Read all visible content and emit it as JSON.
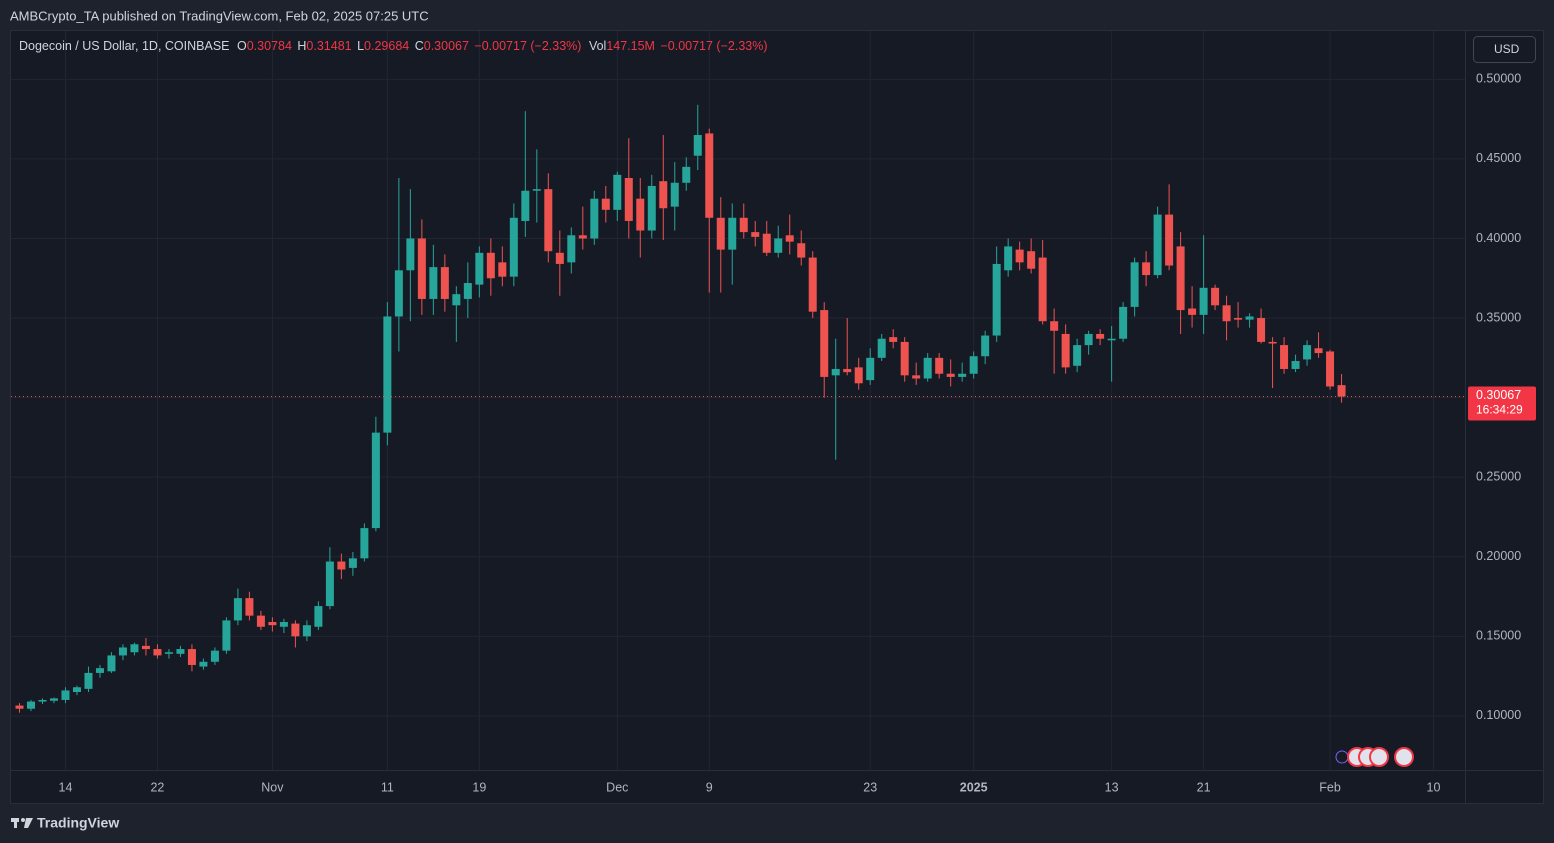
{
  "header": {
    "published": "AMBCrypto_TA published on TradingView.com, Feb 02, 2025 07:25 UTC"
  },
  "footer": {
    "brand": "TradingView"
  },
  "chart_data": {
    "type": "candlestick",
    "legend": {
      "symbol": "Dogecoin / US Dollar, 1D, COINBASE",
      "open_label": "O",
      "open": "0.30784",
      "high_label": "H",
      "high": "0.31481",
      "low_label": "L",
      "low": "0.29684",
      "close_label": "C",
      "close": "0.30067",
      "change": "−0.00717 (−2.33%)",
      "volume_label": "Vol",
      "volume": "147.15M",
      "volume_change": "−0.00717 (−2.33%)"
    },
    "currency": "USD",
    "last_price": 0.30067,
    "countdown": "16:34:29",
    "up_color": "#26a69a",
    "down_color": "#ef5350",
    "grid": true,
    "xlim": [
      "2024-10-09",
      "2025-02-13"
    ],
    "xticks": [
      {
        "value": "2024-10-14",
        "label": "14"
      },
      {
        "value": "2024-10-22",
        "label": "22"
      },
      {
        "value": "2024-11-01",
        "label": "Nov"
      },
      {
        "value": "2024-11-11",
        "label": "11"
      },
      {
        "value": "2024-11-19",
        "label": "19"
      },
      {
        "value": "2024-12-01",
        "label": "Dec"
      },
      {
        "value": "2024-12-09",
        "label": "9"
      },
      {
        "value": "2024-12-23",
        "label": "23"
      },
      {
        "value": "2025-01-01",
        "label": "2025"
      },
      {
        "value": "2025-01-13",
        "label": "13"
      },
      {
        "value": "2025-01-21",
        "label": "21"
      },
      {
        "value": "2025-02-01",
        "label": "Feb"
      },
      {
        "value": "2025-02-10",
        "label": "10"
      }
    ],
    "ylim": [
      0.066,
      0.531
    ],
    "yticks": [
      {
        "value": 0.1,
        "label": "0.10000"
      },
      {
        "value": 0.15,
        "label": "0.15000"
      },
      {
        "value": 0.2,
        "label": "0.20000"
      },
      {
        "value": 0.25,
        "label": "0.25000"
      },
      {
        "value": 0.3,
        "label": "0.30000"
      },
      {
        "value": 0.35,
        "label": "0.35000"
      },
      {
        "value": 0.4,
        "label": "0.40000"
      },
      {
        "value": 0.45,
        "label": "0.45000"
      },
      {
        "value": 0.5,
        "label": "0.50000"
      }
    ],
    "candles": [
      {
        "x": "2024-10-10",
        "open": 0.1065,
        "high": 0.108,
        "low": 0.102,
        "close": 0.1045
      },
      {
        "x": "2024-10-11",
        "open": 0.1045,
        "high": 0.11,
        "low": 0.103,
        "close": 0.109
      },
      {
        "x": "2024-10-12",
        "open": 0.109,
        "high": 0.111,
        "low": 0.1075,
        "close": 0.11
      },
      {
        "x": "2024-10-13",
        "open": 0.1095,
        "high": 0.1115,
        "low": 0.108,
        "close": 0.111
      },
      {
        "x": "2024-10-14",
        "open": 0.11,
        "high": 0.118,
        "low": 0.108,
        "close": 0.116
      },
      {
        "x": "2024-10-15",
        "open": 0.115,
        "high": 0.119,
        "low": 0.113,
        "close": 0.118
      },
      {
        "x": "2024-10-16",
        "open": 0.117,
        "high": 0.131,
        "low": 0.115,
        "close": 0.127
      },
      {
        "x": "2024-10-17",
        "open": 0.127,
        "high": 0.132,
        "low": 0.124,
        "close": 0.13
      },
      {
        "x": "2024-10-18",
        "open": 0.128,
        "high": 0.14,
        "low": 0.127,
        "close": 0.138
      },
      {
        "x": "2024-10-19",
        "open": 0.138,
        "high": 0.145,
        "low": 0.135,
        "close": 0.143
      },
      {
        "x": "2024-10-20",
        "open": 0.14,
        "high": 0.146,
        "low": 0.138,
        "close": 0.145
      },
      {
        "x": "2024-10-21",
        "open": 0.144,
        "high": 0.149,
        "low": 0.138,
        "close": 0.142
      },
      {
        "x": "2024-10-22",
        "open": 0.142,
        "high": 0.145,
        "low": 0.136,
        "close": 0.138
      },
      {
        "x": "2024-10-23",
        "open": 0.139,
        "high": 0.142,
        "low": 0.136,
        "close": 0.14
      },
      {
        "x": "2024-10-24",
        "open": 0.139,
        "high": 0.144,
        "low": 0.137,
        "close": 0.142
      },
      {
        "x": "2024-10-25",
        "open": 0.142,
        "high": 0.145,
        "low": 0.128,
        "close": 0.132
      },
      {
        "x": "2024-10-26",
        "open": 0.131,
        "high": 0.136,
        "low": 0.129,
        "close": 0.134
      },
      {
        "x": "2024-10-27",
        "open": 0.134,
        "high": 0.143,
        "low": 0.132,
        "close": 0.141
      },
      {
        "x": "2024-10-28",
        "open": 0.141,
        "high": 0.162,
        "low": 0.139,
        "close": 0.16
      },
      {
        "x": "2024-10-29",
        "open": 0.16,
        "high": 0.18,
        "low": 0.157,
        "close": 0.174
      },
      {
        "x": "2024-10-30",
        "open": 0.174,
        "high": 0.178,
        "low": 0.16,
        "close": 0.163
      },
      {
        "x": "2024-10-31",
        "open": 0.163,
        "high": 0.166,
        "low": 0.154,
        "close": 0.156
      },
      {
        "x": "2024-11-01",
        "open": 0.159,
        "high": 0.162,
        "low": 0.153,
        "close": 0.157
      },
      {
        "x": "2024-11-02",
        "open": 0.156,
        "high": 0.161,
        "low": 0.152,
        "close": 0.159
      },
      {
        "x": "2024-11-03",
        "open": 0.158,
        "high": 0.16,
        "low": 0.143,
        "close": 0.15
      },
      {
        "x": "2024-11-04",
        "open": 0.15,
        "high": 0.16,
        "low": 0.147,
        "close": 0.157
      },
      {
        "x": "2024-11-05",
        "open": 0.156,
        "high": 0.172,
        "low": 0.154,
        "close": 0.169
      },
      {
        "x": "2024-11-06",
        "open": 0.169,
        "high": 0.206,
        "low": 0.167,
        "close": 0.197
      },
      {
        "x": "2024-11-07",
        "open": 0.197,
        "high": 0.202,
        "low": 0.186,
        "close": 0.192
      },
      {
        "x": "2024-11-08",
        "open": 0.193,
        "high": 0.203,
        "low": 0.188,
        "close": 0.199
      },
      {
        "x": "2024-11-09",
        "open": 0.199,
        "high": 0.221,
        "low": 0.197,
        "close": 0.218
      },
      {
        "x": "2024-11-10",
        "open": 0.218,
        "high": 0.288,
        "low": 0.216,
        "close": 0.278
      },
      {
        "x": "2024-11-11",
        "open": 0.278,
        "high": 0.36,
        "low": 0.27,
        "close": 0.351
      },
      {
        "x": "2024-11-12",
        "open": 0.351,
        "high": 0.438,
        "low": 0.329,
        "close": 0.38
      },
      {
        "x": "2024-11-13",
        "open": 0.38,
        "high": 0.431,
        "low": 0.348,
        "close": 0.4
      },
      {
        "x": "2024-11-14",
        "open": 0.4,
        "high": 0.412,
        "low": 0.352,
        "close": 0.362
      },
      {
        "x": "2024-11-15",
        "open": 0.362,
        "high": 0.396,
        "low": 0.352,
        "close": 0.382
      },
      {
        "x": "2024-11-16",
        "open": 0.382,
        "high": 0.39,
        "low": 0.354,
        "close": 0.362
      },
      {
        "x": "2024-11-17",
        "open": 0.358,
        "high": 0.37,
        "low": 0.335,
        "close": 0.365
      },
      {
        "x": "2024-11-18",
        "open": 0.362,
        "high": 0.385,
        "low": 0.35,
        "close": 0.372
      },
      {
        "x": "2024-11-19",
        "open": 0.371,
        "high": 0.395,
        "low": 0.363,
        "close": 0.391
      },
      {
        "x": "2024-11-20",
        "open": 0.391,
        "high": 0.4,
        "low": 0.364,
        "close": 0.375
      },
      {
        "x": "2024-11-21",
        "open": 0.385,
        "high": 0.395,
        "low": 0.37,
        "close": 0.376
      },
      {
        "x": "2024-11-22",
        "open": 0.376,
        "high": 0.422,
        "low": 0.37,
        "close": 0.413
      },
      {
        "x": "2024-11-23",
        "open": 0.411,
        "high": 0.48,
        "low": 0.401,
        "close": 0.43
      },
      {
        "x": "2024-11-24",
        "open": 0.43,
        "high": 0.456,
        "low": 0.41,
        "close": 0.431
      },
      {
        "x": "2024-11-25",
        "open": 0.431,
        "high": 0.441,
        "low": 0.385,
        "close": 0.392
      },
      {
        "x": "2024-11-26",
        "open": 0.391,
        "high": 0.405,
        "low": 0.364,
        "close": 0.384
      },
      {
        "x": "2024-11-27",
        "open": 0.385,
        "high": 0.407,
        "low": 0.378,
        "close": 0.402
      },
      {
        "x": "2024-11-28",
        "open": 0.402,
        "high": 0.42,
        "low": 0.393,
        "close": 0.4
      },
      {
        "x": "2024-11-29",
        "open": 0.4,
        "high": 0.43,
        "low": 0.396,
        "close": 0.425
      },
      {
        "x": "2024-11-30",
        "open": 0.425,
        "high": 0.433,
        "low": 0.41,
        "close": 0.418
      },
      {
        "x": "2024-12-01",
        "open": 0.418,
        "high": 0.442,
        "low": 0.411,
        "close": 0.44
      },
      {
        "x": "2024-12-02",
        "open": 0.438,
        "high": 0.463,
        "low": 0.4,
        "close": 0.411
      },
      {
        "x": "2024-12-03",
        "open": 0.425,
        "high": 0.438,
        "low": 0.388,
        "close": 0.405
      },
      {
        "x": "2024-12-04",
        "open": 0.405,
        "high": 0.44,
        "low": 0.4,
        "close": 0.433
      },
      {
        "x": "2024-12-05",
        "open": 0.436,
        "high": 0.465,
        "low": 0.399,
        "close": 0.419
      },
      {
        "x": "2024-12-06",
        "open": 0.42,
        "high": 0.448,
        "low": 0.405,
        "close": 0.435
      },
      {
        "x": "2024-12-07",
        "open": 0.435,
        "high": 0.451,
        "low": 0.43,
        "close": 0.445
      },
      {
        "x": "2024-12-08",
        "open": 0.452,
        "high": 0.484,
        "low": 0.443,
        "close": 0.465
      },
      {
        "x": "2024-12-09",
        "open": 0.466,
        "high": 0.469,
        "low": 0.366,
        "close": 0.413
      },
      {
        "x": "2024-12-10",
        "open": 0.413,
        "high": 0.426,
        "low": 0.366,
        "close": 0.393
      },
      {
        "x": "2024-12-11",
        "open": 0.393,
        "high": 0.422,
        "low": 0.371,
        "close": 0.413
      },
      {
        "x": "2024-12-12",
        "open": 0.413,
        "high": 0.422,
        "low": 0.4,
        "close": 0.404
      },
      {
        "x": "2024-12-13",
        "open": 0.404,
        "high": 0.411,
        "low": 0.395,
        "close": 0.401
      },
      {
        "x": "2024-12-14",
        "open": 0.403,
        "high": 0.411,
        "low": 0.389,
        "close": 0.391
      },
      {
        "x": "2024-12-15",
        "open": 0.391,
        "high": 0.408,
        "low": 0.388,
        "close": 0.4
      },
      {
        "x": "2024-12-16",
        "open": 0.402,
        "high": 0.415,
        "low": 0.39,
        "close": 0.398
      },
      {
        "x": "2024-12-17",
        "open": 0.397,
        "high": 0.405,
        "low": 0.383,
        "close": 0.388
      },
      {
        "x": "2024-12-18",
        "open": 0.388,
        "high": 0.392,
        "low": 0.35,
        "close": 0.354
      },
      {
        "x": "2024-12-19",
        "open": 0.355,
        "high": 0.36,
        "low": 0.3,
        "close": 0.313
      },
      {
        "x": "2024-12-20",
        "open": 0.314,
        "high": 0.337,
        "low": 0.261,
        "close": 0.318
      },
      {
        "x": "2024-12-21",
        "open": 0.318,
        "high": 0.35,
        "low": 0.314,
        "close": 0.316
      },
      {
        "x": "2024-12-22",
        "open": 0.319,
        "high": 0.325,
        "low": 0.305,
        "close": 0.309
      },
      {
        "x": "2024-12-23",
        "open": 0.311,
        "high": 0.331,
        "low": 0.308,
        "close": 0.325
      },
      {
        "x": "2024-12-24",
        "open": 0.325,
        "high": 0.34,
        "low": 0.323,
        "close": 0.337
      },
      {
        "x": "2024-12-25",
        "open": 0.338,
        "high": 0.343,
        "low": 0.331,
        "close": 0.335
      },
      {
        "x": "2024-12-26",
        "open": 0.335,
        "high": 0.338,
        "low": 0.31,
        "close": 0.314
      },
      {
        "x": "2024-12-27",
        "open": 0.314,
        "high": 0.322,
        "low": 0.308,
        "close": 0.312
      },
      {
        "x": "2024-12-28",
        "open": 0.312,
        "high": 0.328,
        "low": 0.31,
        "close": 0.325
      },
      {
        "x": "2024-12-29",
        "open": 0.325,
        "high": 0.328,
        "low": 0.312,
        "close": 0.315
      },
      {
        "x": "2024-12-30",
        "open": 0.315,
        "high": 0.324,
        "low": 0.307,
        "close": 0.313
      },
      {
        "x": "2024-12-31",
        "open": 0.313,
        "high": 0.322,
        "low": 0.31,
        "close": 0.315
      },
      {
        "x": "2025-01-01",
        "open": 0.315,
        "high": 0.329,
        "low": 0.312,
        "close": 0.326
      },
      {
        "x": "2025-01-02",
        "open": 0.326,
        "high": 0.342,
        "low": 0.321,
        "close": 0.339
      },
      {
        "x": "2025-01-03",
        "open": 0.339,
        "high": 0.395,
        "low": 0.335,
        "close": 0.384
      },
      {
        "x": "2025-01-04",
        "open": 0.38,
        "high": 0.4,
        "low": 0.376,
        "close": 0.395
      },
      {
        "x": "2025-01-05",
        "open": 0.393,
        "high": 0.398,
        "low": 0.38,
        "close": 0.385
      },
      {
        "x": "2025-01-06",
        "open": 0.392,
        "high": 0.4,
        "low": 0.378,
        "close": 0.381
      },
      {
        "x": "2025-01-07",
        "open": 0.388,
        "high": 0.399,
        "low": 0.346,
        "close": 0.348
      },
      {
        "x": "2025-01-08",
        "open": 0.348,
        "high": 0.356,
        "low": 0.315,
        "close": 0.342
      },
      {
        "x": "2025-01-09",
        "open": 0.34,
        "high": 0.346,
        "low": 0.315,
        "close": 0.319
      },
      {
        "x": "2025-01-10",
        "open": 0.32,
        "high": 0.337,
        "low": 0.316,
        "close": 0.333
      },
      {
        "x": "2025-01-11",
        "open": 0.333,
        "high": 0.342,
        "low": 0.327,
        "close": 0.34
      },
      {
        "x": "2025-01-12",
        "open": 0.34,
        "high": 0.343,
        "low": 0.333,
        "close": 0.337
      },
      {
        "x": "2025-01-13",
        "open": 0.336,
        "high": 0.345,
        "low": 0.31,
        "close": 0.337
      },
      {
        "x": "2025-01-14",
        "open": 0.337,
        "high": 0.36,
        "low": 0.335,
        "close": 0.357
      },
      {
        "x": "2025-01-15",
        "open": 0.357,
        "high": 0.388,
        "low": 0.351,
        "close": 0.385
      },
      {
        "x": "2025-01-16",
        "open": 0.385,
        "high": 0.392,
        "low": 0.37,
        "close": 0.377
      },
      {
        "x": "2025-01-17",
        "open": 0.377,
        "high": 0.42,
        "low": 0.375,
        "close": 0.415
      },
      {
        "x": "2025-01-18",
        "open": 0.415,
        "high": 0.434,
        "low": 0.38,
        "close": 0.383
      },
      {
        "x": "2025-01-19",
        "open": 0.395,
        "high": 0.404,
        "low": 0.34,
        "close": 0.355
      },
      {
        "x": "2025-01-20",
        "open": 0.356,
        "high": 0.37,
        "low": 0.344,
        "close": 0.352
      },
      {
        "x": "2025-01-21",
        "open": 0.352,
        "high": 0.402,
        "low": 0.34,
        "close": 0.369
      },
      {
        "x": "2025-01-22",
        "open": 0.369,
        "high": 0.371,
        "low": 0.355,
        "close": 0.358
      },
      {
        "x": "2025-01-23",
        "open": 0.358,
        "high": 0.364,
        "low": 0.336,
        "close": 0.348
      },
      {
        "x": "2025-01-24",
        "open": 0.35,
        "high": 0.36,
        "low": 0.344,
        "close": 0.349
      },
      {
        "x": "2025-01-25",
        "open": 0.349,
        "high": 0.353,
        "low": 0.344,
        "close": 0.351
      },
      {
        "x": "2025-01-26",
        "open": 0.35,
        "high": 0.356,
        "low": 0.334,
        "close": 0.335
      },
      {
        "x": "2025-01-27",
        "open": 0.335,
        "high": 0.338,
        "low": 0.306,
        "close": 0.334
      },
      {
        "x": "2025-01-28",
        "open": 0.333,
        "high": 0.338,
        "low": 0.315,
        "close": 0.318
      },
      {
        "x": "2025-01-29",
        "open": 0.318,
        "high": 0.327,
        "low": 0.316,
        "close": 0.323
      },
      {
        "x": "2025-01-30",
        "open": 0.324,
        "high": 0.336,
        "low": 0.32,
        "close": 0.333
      },
      {
        "x": "2025-01-31",
        "open": 0.331,
        "high": 0.341,
        "low": 0.325,
        "close": 0.328
      },
      {
        "x": "2025-02-01",
        "open": 0.329,
        "high": 0.33,
        "low": 0.305,
        "close": 0.307
      },
      {
        "x": "2025-02-02",
        "open": 0.30784,
        "high": 0.31481,
        "low": 0.29684,
        "close": 0.30067
      }
    ]
  }
}
